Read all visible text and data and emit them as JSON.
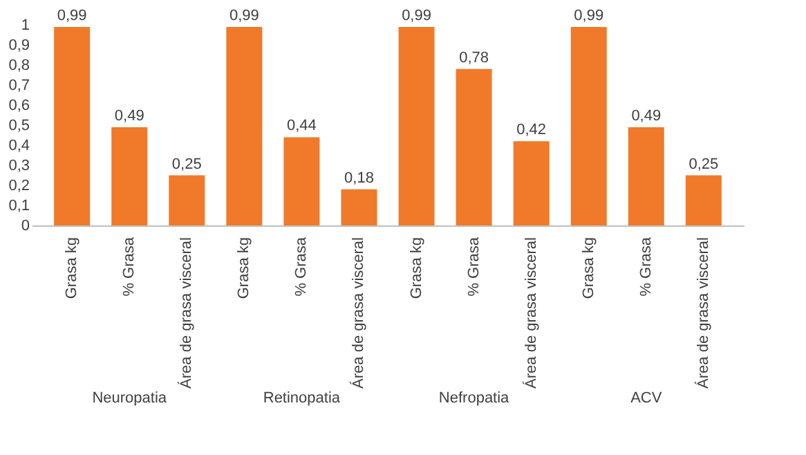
{
  "chart_data": {
    "type": "bar",
    "categories": [
      "Grasa kg",
      "% Grasa",
      "Área de grasa visceral",
      "Grasa kg",
      "% Grasa",
      "Área de grasa visceral",
      "Grasa kg",
      "% Grasa",
      "Área de grasa visceral",
      "Grasa kg",
      "% Grasa",
      "Área de grasa visceral"
    ],
    "values": [
      0.99,
      0.49,
      0.25,
      0.99,
      0.44,
      0.18,
      0.99,
      0.78,
      0.42,
      0.99,
      0.49,
      0.25
    ],
    "value_labels": [
      "0,99",
      "0,49",
      "0,25",
      "0,99",
      "0,44",
      "0,18",
      "0,99",
      "0,78",
      "0,42",
      "0,99",
      "0,49",
      "0,25"
    ],
    "color": "#f07a2a",
    "ylim": [
      0,
      1
    ],
    "yticks": [
      0,
      {
        "value": 0.1,
        "label": "0,1"
      },
      {
        "value": 0.2,
        "label": "0,2"
      },
      {
        "value": 0.3,
        "label": "0,3"
      },
      {
        "value": 0.4,
        "label": "0,4"
      },
      {
        "value": 0.5,
        "label": "0,5"
      },
      {
        "value": 0.6,
        "label": "0,6"
      },
      {
        "value": 0.7,
        "label": "0,7"
      },
      {
        "value": 0.8,
        "label": "0,8"
      },
      {
        "value": 0.9,
        "label": "0,9"
      },
      1
    ],
    "annotations": [
      "Neuropatia",
      "Retinopatia",
      "Nefropatia",
      "ACV"
    ],
    "grid": false
  }
}
